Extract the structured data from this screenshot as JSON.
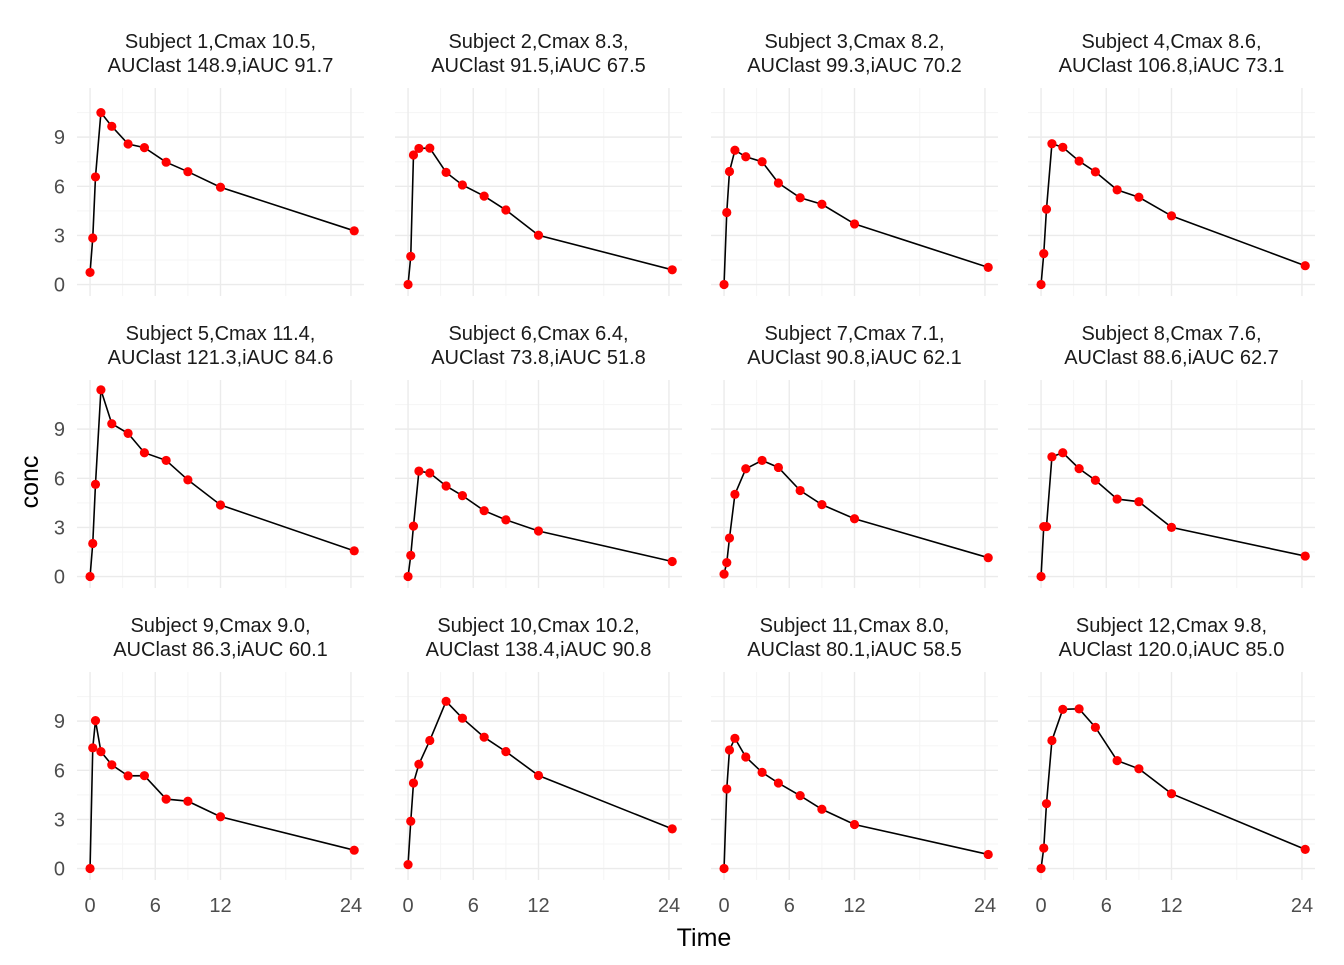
{
  "chart_data": {
    "type": "line",
    "xlabel": "Time",
    "ylabel": "conc",
    "xlim": [
      -1.2,
      25.2
    ],
    "ylim": [
      -0.7,
      12.0
    ],
    "x_ticks": [
      0,
      6,
      12,
      24
    ],
    "y_ticks": [
      0,
      3,
      6,
      9
    ],
    "grid": true,
    "layout": "facet-3x4",
    "line_color": "#000000",
    "point_color": "#ff0000",
    "panels": [
      {
        "title_line1": "Subject  1,Cmax 10.5,",
        "title_line2": "AUClast 148.9,iAUC 91.7",
        "x": [
          0,
          0.25,
          0.5,
          1,
          2,
          3.5,
          5,
          7,
          9,
          12,
          24.3
        ],
        "y": [
          0.74,
          2.84,
          6.57,
          10.5,
          9.66,
          8.58,
          8.36,
          7.47,
          6.89,
          5.94,
          3.28
        ]
      },
      {
        "title_line1": "Subject  2,Cmax 8.3,",
        "title_line2": "AUClast 91.5,iAUC 67.5",
        "x": [
          0,
          0.25,
          0.5,
          1,
          2,
          3.5,
          5,
          7,
          9,
          12,
          24.3
        ],
        "y": [
          0,
          1.72,
          7.91,
          8.31,
          8.33,
          6.85,
          6.08,
          5.4,
          4.55,
          3.01,
          0.9
        ]
      },
      {
        "title_line1": "Subject  3,Cmax 8.2,",
        "title_line2": "AUClast 99.3,iAUC 70.2",
        "x": [
          0,
          0.25,
          0.5,
          1,
          2,
          3.5,
          5,
          7,
          9,
          12,
          24.3
        ],
        "y": [
          0,
          4.4,
          6.9,
          8.2,
          7.8,
          7.5,
          6.2,
          5.3,
          4.9,
          3.7,
          1.05
        ]
      },
      {
        "title_line1": "Subject  4,Cmax 8.6,",
        "title_line2": "AUClast 106.8,iAUC 73.1",
        "x": [
          0,
          0.25,
          0.5,
          1,
          2,
          3.5,
          5,
          7,
          9,
          12,
          24.3
        ],
        "y": [
          0,
          1.89,
          4.6,
          8.6,
          8.38,
          7.54,
          6.88,
          5.78,
          5.33,
          4.19,
          1.15
        ]
      },
      {
        "title_line1": "Subject  5,Cmax 11.4,",
        "title_line2": "AUClast 121.3,iAUC 84.6",
        "x": [
          0,
          0.25,
          0.5,
          1,
          2,
          3.5,
          5,
          7,
          9,
          12,
          24.3
        ],
        "y": [
          0,
          2.02,
          5.63,
          11.4,
          9.33,
          8.74,
          7.56,
          7.09,
          5.9,
          4.37,
          1.57
        ]
      },
      {
        "title_line1": "Subject  6,Cmax 6.4,",
        "title_line2": "AUClast 73.8,iAUC 51.8",
        "x": [
          0,
          0.25,
          0.5,
          1,
          2,
          3.5,
          5,
          7,
          9,
          12,
          24.3
        ],
        "y": [
          0,
          1.29,
          3.08,
          6.44,
          6.32,
          5.53,
          4.94,
          4.02,
          3.46,
          2.78,
          0.92
        ]
      },
      {
        "title_line1": "Subject  7,Cmax 7.1,",
        "title_line2": "AUClast 90.8,iAUC 62.1",
        "x": [
          0,
          0.25,
          0.5,
          1,
          2,
          3.5,
          5,
          7,
          9,
          12,
          24.3
        ],
        "y": [
          0.15,
          0.85,
          2.35,
          5.02,
          6.58,
          7.09,
          6.66,
          5.25,
          4.39,
          3.53,
          1.15
        ]
      },
      {
        "title_line1": "Subject  8,Cmax 7.6,",
        "title_line2": "AUClast 88.6,iAUC 62.7",
        "x": [
          0,
          0.25,
          0.5,
          1,
          2,
          3.5,
          5,
          7,
          9,
          12,
          24.3
        ],
        "y": [
          0,
          3.05,
          3.05,
          7.31,
          7.56,
          6.59,
          5.88,
          4.73,
          4.57,
          3.0,
          1.25
        ]
      },
      {
        "title_line1": "Subject  9,Cmax 9.0,",
        "title_line2": "AUClast 86.3,iAUC 60.1",
        "x": [
          0,
          0.25,
          0.5,
          1,
          2,
          3.5,
          5,
          7,
          9,
          12,
          24.3
        ],
        "y": [
          0,
          7.37,
          9.03,
          7.14,
          6.33,
          5.66,
          5.67,
          4.24,
          4.11,
          3.16,
          1.12
        ]
      },
      {
        "title_line1": "Subject 10,Cmax 10.2,",
        "title_line2": "AUClast 138.4,iAUC 90.8",
        "x": [
          0,
          0.25,
          0.5,
          1,
          2,
          3.5,
          5,
          7,
          9,
          12,
          24.3
        ],
        "y": [
          0.24,
          2.89,
          5.22,
          6.37,
          7.82,
          10.21,
          9.18,
          8.02,
          7.14,
          5.68,
          2.42
        ]
      },
      {
        "title_line1": "Subject 11,Cmax 8.0,",
        "title_line2": "AUClast 80.1,iAUC 58.5",
        "x": [
          0,
          0.25,
          0.5,
          1,
          2,
          3.5,
          5,
          7,
          9,
          12,
          24.3
        ],
        "y": [
          0,
          4.86,
          7.24,
          7.95,
          6.81,
          5.87,
          5.22,
          4.45,
          3.62,
          2.69,
          0.86
        ]
      },
      {
        "title_line1": "Subject 12,Cmax 9.8,",
        "title_line2": "AUClast 120.0,iAUC 85.0",
        "x": [
          0,
          0.25,
          0.5,
          1,
          2,
          3.5,
          5,
          7,
          9,
          12,
          24.3
        ],
        "y": [
          0,
          1.25,
          3.96,
          7.82,
          9.72,
          9.75,
          8.62,
          6.59,
          6.09,
          4.57,
          1.17
        ]
      }
    ]
  }
}
